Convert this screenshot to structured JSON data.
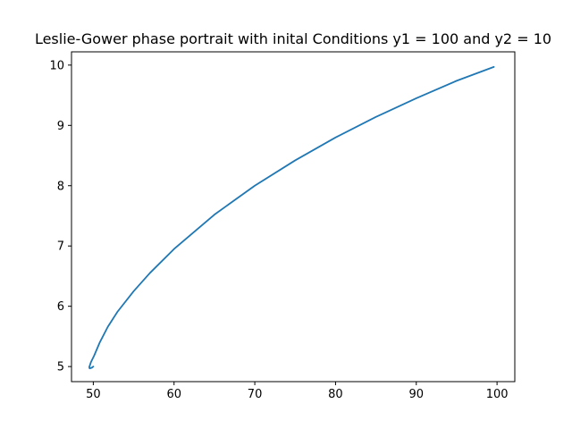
{
  "chart_data": {
    "type": "line",
    "title": "Leslie-Gower phase portrait with inital Conditions y1 = 100 and y2 = 10",
    "xlabel": "",
    "ylabel": "",
    "xlim": [
      47.3,
      102.2
    ],
    "ylim": [
      4.75,
      10.22
    ],
    "x_ticks": [
      50,
      60,
      70,
      80,
      90,
      100
    ],
    "y_ticks": [
      5,
      6,
      7,
      8,
      9,
      10
    ],
    "x_tick_labels": [
      "50",
      "60",
      "70",
      "80",
      "90",
      "100"
    ],
    "y_tick_labels": [
      "5",
      "6",
      "7",
      "8",
      "9",
      "10"
    ],
    "grid": false,
    "legend": "none",
    "series": [
      {
        "color": "#1f77b4",
        "x": [
          99.6,
          95.0,
          90.0,
          85.0,
          80.0,
          75.0,
          70.0,
          65.0,
          60.0,
          57.0,
          55.0,
          53.0,
          51.8,
          50.8,
          50.1,
          49.7,
          49.5,
          49.55,
          49.8,
          50.0
        ],
        "y": [
          9.97,
          9.74,
          9.45,
          9.14,
          8.8,
          8.42,
          8.0,
          7.52,
          6.95,
          6.55,
          6.25,
          5.91,
          5.66,
          5.4,
          5.18,
          5.07,
          4.99,
          4.97,
          4.98,
          5.0
        ]
      }
    ]
  }
}
